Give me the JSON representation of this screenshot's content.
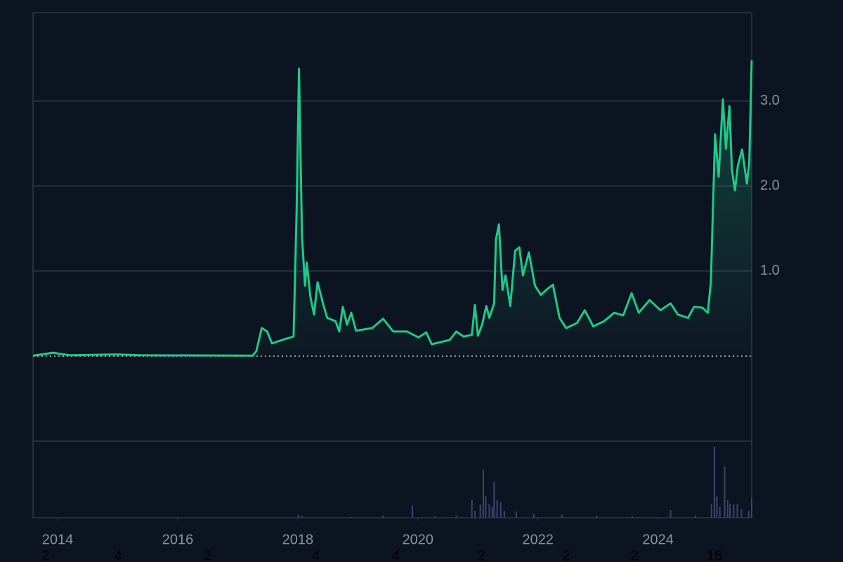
{
  "chart_data": {
    "type": "line",
    "color": "#1fc98a",
    "background": "#0d1421",
    "x": [
      2013.59,
      2013.92,
      2014.21,
      2014.97,
      2015.38,
      2017.25,
      2017.31,
      2017.4,
      2017.49,
      2017.57,
      2017.78,
      2017.93,
      2017.98,
      2018.02,
      2018.07,
      2018.12,
      2018.15,
      2018.21,
      2018.27,
      2018.33,
      2018.42,
      2018.49,
      2018.63,
      2018.69,
      2018.75,
      2018.82,
      2018.89,
      2018.97,
      2019.24,
      2019.42,
      2019.59,
      2019.82,
      2020.01,
      2020.14,
      2020.23,
      2020.53,
      2020.64,
      2020.76,
      2020.9,
      2020.95,
      2021.0,
      2021.07,
      2021.14,
      2021.19,
      2021.27,
      2021.3,
      2021.35,
      2021.41,
      2021.46,
      2021.54,
      2021.62,
      2021.69,
      2021.75,
      2021.85,
      2021.95,
      2022.05,
      2022.14,
      2022.25,
      2022.36,
      2022.47,
      2022.65,
      2022.78,
      2022.92,
      2023.1,
      2023.27,
      2023.42,
      2023.56,
      2023.68,
      2023.86,
      2024.04,
      2024.21,
      2024.33,
      2024.5,
      2024.6,
      2024.74,
      2024.83,
      2024.88,
      2024.95,
      2025.01,
      2025.08,
      2025.13,
      2025.19,
      2025.23,
      2025.28,
      2025.33,
      2025.4,
      2025.48,
      2025.52,
      2025.56
    ],
    "values": [
      0.005,
      0.04,
      0.01,
      0.02,
      0.01,
      0.006,
      0.06,
      0.33,
      0.29,
      0.15,
      0.2,
      0.23,
      1.7,
      3.38,
      1.41,
      0.83,
      1.1,
      0.7,
      0.49,
      0.87,
      0.62,
      0.45,
      0.41,
      0.29,
      0.58,
      0.37,
      0.51,
      0.3,
      0.33,
      0.44,
      0.29,
      0.29,
      0.22,
      0.28,
      0.14,
      0.19,
      0.29,
      0.23,
      0.25,
      0.6,
      0.24,
      0.37,
      0.59,
      0.45,
      0.62,
      1.37,
      1.55,
      0.78,
      0.95,
      0.59,
      1.24,
      1.28,
      0.95,
      1.22,
      0.83,
      0.72,
      0.78,
      0.84,
      0.45,
      0.33,
      0.39,
      0.54,
      0.35,
      0.41,
      0.51,
      0.48,
      0.74,
      0.51,
      0.66,
      0.54,
      0.62,
      0.49,
      0.45,
      0.58,
      0.57,
      0.51,
      0.87,
      2.61,
      2.11,
      3.02,
      2.44,
      2.94,
      2.2,
      1.95,
      2.24,
      2.43,
      2.03,
      2.28,
      3.48
    ],
    "xlim": [
      2013.59,
      2025.56
    ],
    "xticks": [
      2014,
      2016,
      2018,
      2020,
      2022,
      2024
    ],
    "ylim": [
      -1.0,
      4.04
    ],
    "yticks": [
      {
        "value": 1,
        "label": "1.0"
      },
      {
        "value": 2,
        "label": "2.0"
      },
      {
        "value": 3,
        "label": "3.0"
      }
    ],
    "grid": true,
    "volume": {
      "color": "#3a4570",
      "ylim": [
        0,
        100
      ],
      "x": [
        2018.01,
        2018.07,
        2018.89,
        2019.42,
        2019.91,
        2020.29,
        2020.64,
        2020.9,
        2020.95,
        2021.04,
        2021.09,
        2021.13,
        2021.19,
        2021.24,
        2021.27,
        2021.32,
        2021.38,
        2021.44,
        2021.64,
        2021.93,
        2022.4,
        2022.98,
        2023.57,
        2024.21,
        2024.62,
        2024.89,
        2024.94,
        2024.98,
        2025.03,
        2025.11,
        2025.16,
        2025.2,
        2025.26,
        2025.32,
        2025.39,
        2025.51,
        2025.56
      ],
      "values": [
        4,
        3,
        1,
        3,
        16,
        2,
        3,
        23,
        9,
        17,
        63,
        28,
        18,
        14,
        47,
        23,
        20,
        9,
        8,
        5,
        4,
        3,
        2,
        10,
        3,
        18,
        93,
        28,
        14,
        67,
        23,
        18,
        17,
        18,
        11,
        9,
        26
      ]
    },
    "annotations": [
      {
        "x": 2013.8,
        "text": "2"
      },
      {
        "x": 2015.01,
        "text": "4"
      },
      {
        "x": 2016.5,
        "text": "2"
      },
      {
        "x": 2018.3,
        "text": "4"
      },
      {
        "x": 2019.63,
        "text": "4"
      },
      {
        "x": 2021.06,
        "text": "2"
      },
      {
        "x": 2022.47,
        "text": "2"
      },
      {
        "x": 2023.61,
        "text": "2"
      },
      {
        "x": 2024.94,
        "text": "15"
      }
    ]
  }
}
